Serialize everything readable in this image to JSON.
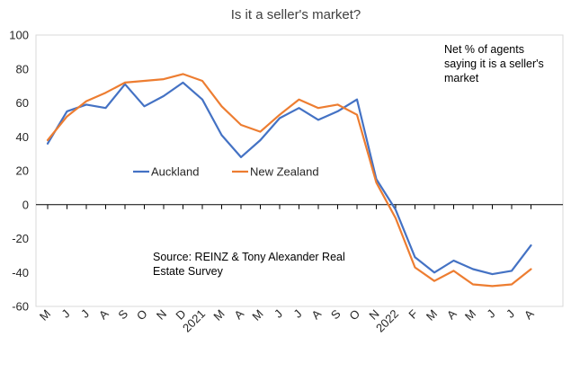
{
  "chart_data": {
    "type": "line",
    "title": "Is it a seller's market?",
    "xlabel": "",
    "ylabel": "",
    "ylim": [
      -60,
      100
    ],
    "yticks": [
      100,
      80,
      60,
      40,
      20,
      0,
      -20,
      -40,
      -60
    ],
    "categories": [
      "M",
      "J",
      "J",
      "A",
      "S",
      "O",
      "N",
      "D",
      "2021",
      "M",
      "A",
      "M",
      "J",
      "J",
      "A",
      "S",
      "O",
      "N",
      "2022",
      "F",
      "M",
      "A",
      "M",
      "J",
      "J",
      "A"
    ],
    "series": [
      {
        "name": "Auckland",
        "color": "#4472C4",
        "values": [
          36,
          55,
          59,
          57,
          71,
          58,
          64,
          72,
          62,
          41,
          28,
          38,
          51,
          57,
          50,
          55,
          62,
          15,
          -3,
          -31,
          -40,
          -33,
          -38,
          -41,
          -39,
          -24
        ]
      },
      {
        "name": "New Zealand",
        "color": "#ED7D31",
        "values": [
          38,
          52,
          61,
          66,
          72,
          73,
          74,
          77,
          73,
          58,
          47,
          43,
          53,
          62,
          57,
          59,
          53,
          13,
          -8,
          -37,
          -45,
          -39,
          -47,
          -48,
          -47,
          -38
        ]
      }
    ],
    "annotations": {
      "top_right": [
        "Net % of agents",
        "saying it is a seller's",
        "market"
      ],
      "source": [
        "Source: REINZ & Tony Alexander Real",
        "Estate Survey"
      ]
    },
    "legend_position": "middle-left",
    "grid": false
  }
}
